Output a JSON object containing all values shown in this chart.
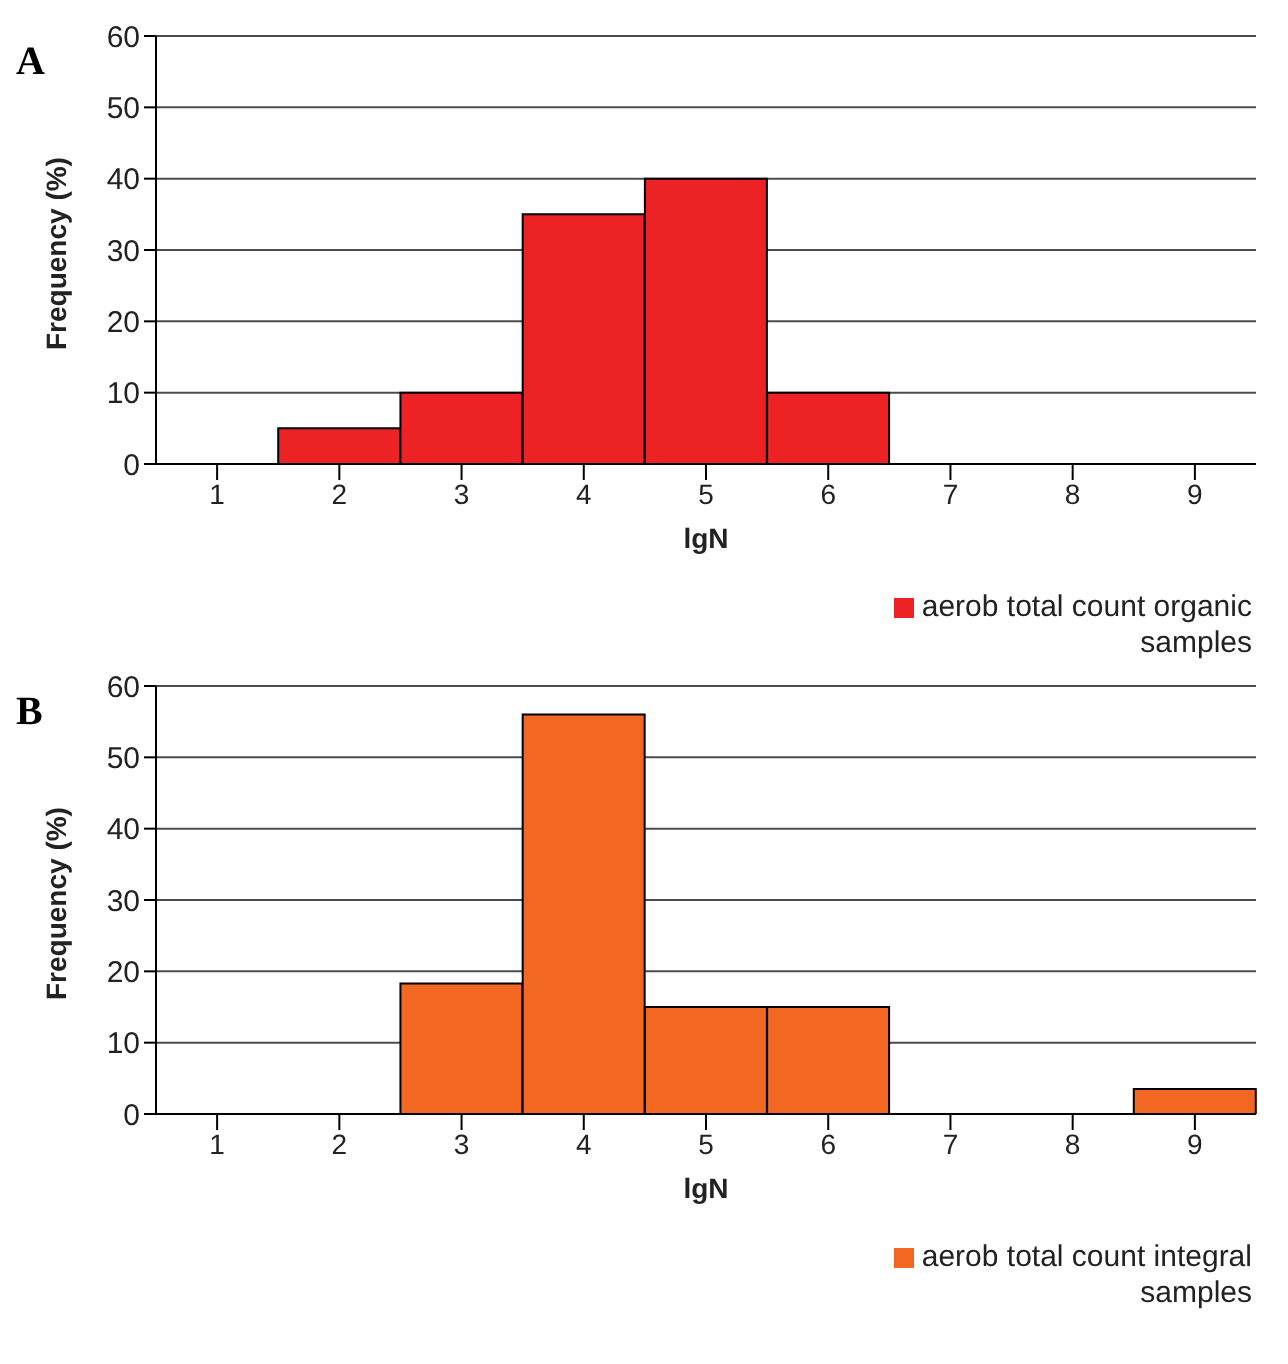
{
  "chart_data": [
    {
      "type": "bar",
      "title": "A",
      "categories": [
        "1",
        "2",
        "3",
        "4",
        "5",
        "6",
        "7",
        "8",
        "9"
      ],
      "series": [
        {
          "name": "aerob total count organic samples",
          "color": "#ed2224",
          "values": [
            0,
            5,
            10,
            35,
            40,
            10,
            0,
            0,
            0
          ]
        }
      ],
      "xlabel": "lgN",
      "ylabel": "Frequency (%)",
      "ylim": [
        0,
        60
      ],
      "yticks": [
        0,
        10,
        20,
        30,
        40,
        50,
        60
      ],
      "grid": "y",
      "legend": "bottom right"
    },
    {
      "type": "bar",
      "title": "B",
      "categories": [
        "1",
        "2",
        "3",
        "4",
        "5",
        "6",
        "7",
        "8",
        "9"
      ],
      "series": [
        {
          "name": "aerob total count integral samples",
          "color": "#f26722",
          "values": [
            0,
            0,
            18.3,
            56,
            15,
            15,
            0,
            0,
            3.5
          ]
        }
      ],
      "xlabel": "lgN",
      "ylabel": "Frequency (%)",
      "ylim": [
        0,
        60
      ],
      "yticks": [
        0,
        10,
        20,
        30,
        40,
        50,
        60
      ],
      "grid": "y",
      "legend": "bottom right"
    }
  ]
}
